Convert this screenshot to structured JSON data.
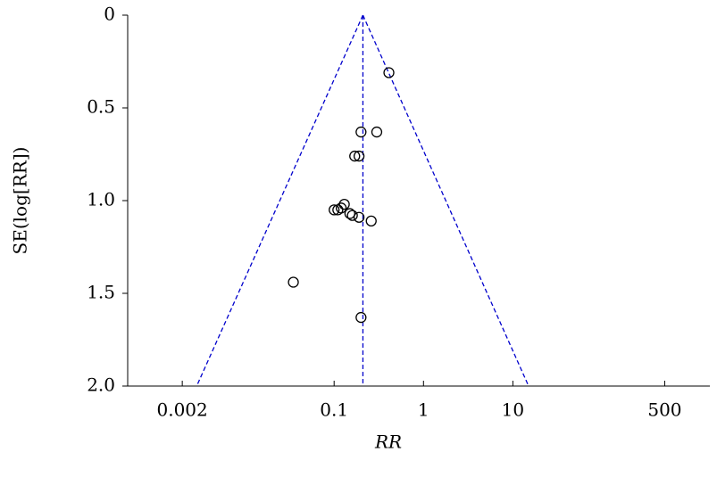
{
  "chart_data": {
    "type": "scatter",
    "x_label": "RR",
    "y_label": "SE(log[RR])",
    "x": [
      0.41,
      0.2,
      0.3,
      0.17,
      0.19,
      0.13,
      0.12,
      0.1,
      0.11,
      0.15,
      0.16,
      0.19,
      0.26,
      0.035,
      0.2
    ],
    "values": [
      0.31,
      0.63,
      0.63,
      0.76,
      0.76,
      1.02,
      1.04,
      1.05,
      1.05,
      1.07,
      1.08,
      1.09,
      1.11,
      1.44,
      1.63
    ],
    "color": "#000000",
    "funnel": {
      "center": 0.21,
      "lower_at_max_se": 0.0029,
      "upper_at_max_se": 15,
      "color": "#0000cc"
    },
    "x_log_scale": true,
    "y_inverted": true,
    "xlim": [
      0.00049,
      1600
    ],
    "xticks": [
      0.002,
      0.1,
      1,
      10,
      500
    ],
    "ylim": [
      0,
      2
    ],
    "yticks": [
      0,
      0.5,
      {
        "value": 1,
        "label": "1.0"
      },
      1.5,
      {
        "value": 2,
        "label": "2.0"
      }
    ]
  }
}
